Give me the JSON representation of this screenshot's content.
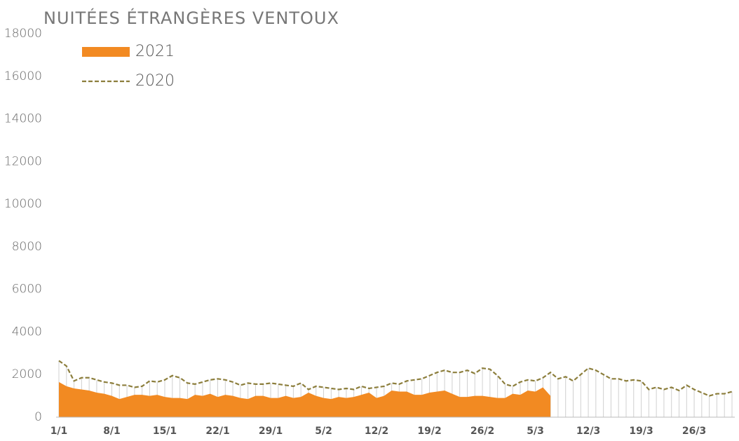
{
  "chart_data": {
    "type": "area",
    "title": "NUITÉES ÉTRANGÈRES VENTOUX",
    "categories": [
      "1/1",
      null,
      null,
      null,
      null,
      null,
      null,
      "8/1",
      null,
      null,
      null,
      null,
      null,
      null,
      "15/1",
      null,
      null,
      null,
      null,
      null,
      null,
      "22/1",
      null,
      null,
      null,
      null,
      null,
      null,
      "29/1",
      null,
      null,
      null,
      null,
      null,
      null,
      "5/2",
      null,
      null,
      null,
      null,
      null,
      null,
      "12/2",
      null,
      null,
      null,
      null,
      null,
      null,
      "19/2",
      null,
      null,
      null,
      null,
      null,
      null,
      "26/2",
      null,
      null,
      null,
      null,
      null,
      null,
      "5/3",
      null,
      null,
      null,
      null,
      null,
      null,
      "12/3",
      null,
      null,
      null,
      null,
      null,
      null,
      "19/3",
      null,
      null,
      null,
      null,
      null,
      null,
      "26/3",
      null,
      null,
      null,
      null,
      null
    ],
    "series": [
      {
        "name": "2021",
        "color": "#f28a22",
        "filled": true,
        "values": [
          1650,
          1450,
          1350,
          1300,
          1250,
          1150,
          1100,
          1000,
          850,
          950,
          1050,
          1050,
          1000,
          1050,
          950,
          900,
          900,
          850,
          1050,
          1000,
          1100,
          950,
          1050,
          1000,
          900,
          850,
          1000,
          1000,
          900,
          900,
          1000,
          900,
          950,
          1150,
          1000,
          900,
          850,
          950,
          900,
          950,
          1050,
          1150,
          900,
          1000,
          1250,
          1200,
          1200,
          1050,
          1050,
          1150,
          1200,
          1250,
          1100,
          950,
          950,
          1000,
          1000,
          950,
          900,
          900,
          1100,
          1050,
          1250,
          1200,
          1400,
          1000,
          null,
          null,
          null,
          null,
          null,
          null,
          null,
          null,
          null,
          null,
          null,
          null,
          null,
          null,
          null,
          null,
          null,
          null,
          null,
          null,
          null,
          null,
          null,
          null
        ]
      },
      {
        "name": "2020",
        "color": "#8c7e3c",
        "dashed": true,
        "values": [
          2650,
          2400,
          1700,
          1850,
          1850,
          1750,
          1650,
          1600,
          1500,
          1500,
          1400,
          1450,
          1700,
          1650,
          1750,
          1950,
          1850,
          1600,
          1550,
          1650,
          1750,
          1800,
          1750,
          1650,
          1500,
          1600,
          1550,
          1550,
          1600,
          1550,
          1500,
          1450,
          1600,
          1300,
          1450,
          1400,
          1350,
          1300,
          1350,
          1300,
          1450,
          1350,
          1400,
          1450,
          1600,
          1550,
          1700,
          1750,
          1800,
          1950,
          2100,
          2200,
          2100,
          2100,
          2200,
          2050,
          2300,
          2250,
          1950,
          1550,
          1450,
          1650,
          1750,
          1700,
          1850,
          2100,
          1800,
          1900,
          1700,
          2000,
          2300,
          2200,
          2000,
          1800,
          1800,
          1700,
          1750,
          1700,
          1300,
          1400,
          1300,
          1400,
          1250,
          1500,
          1300,
          1150,
          1000,
          1100,
          1100,
          1200
        ]
      }
    ],
    "ylim": [
      0,
      18000
    ],
    "yticks": [
      0,
      2000,
      4000,
      6000,
      8000,
      10000,
      12000,
      14000,
      16000,
      18000
    ],
    "grid": false,
    "legend": "top-left"
  }
}
